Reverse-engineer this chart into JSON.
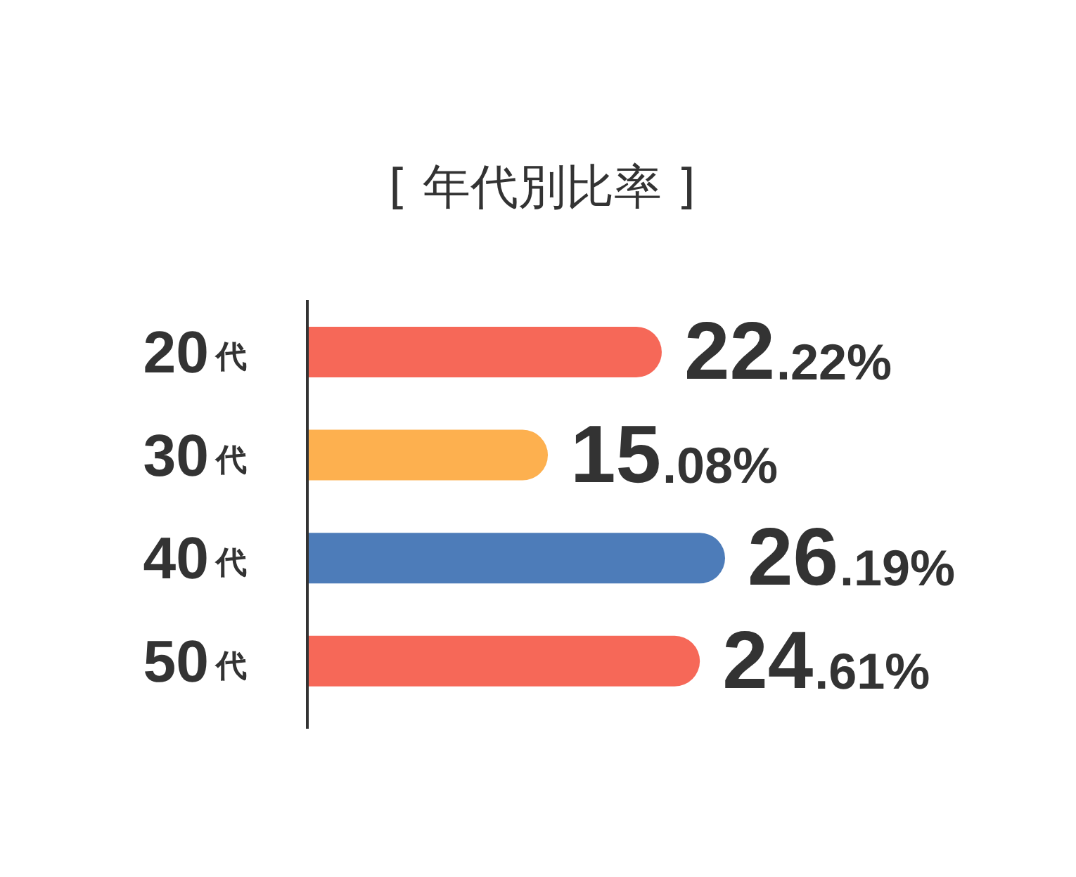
{
  "chart_data": {
    "type": "bar",
    "orientation": "horizontal",
    "title": "[ 年代別比率 ]",
    "categories": [
      "20代",
      "30代",
      "40代",
      "50代"
    ],
    "values": [
      22.22,
      15.08,
      26.19,
      24.61
    ],
    "colors": [
      "#f66858",
      "#fdb04f",
      "#4d7cb9",
      "#f66858"
    ],
    "value_labels": [
      "22.22%",
      "15.08%",
      "26.19%",
      "24.61%"
    ],
    "tick_labels": "y"
  }
}
